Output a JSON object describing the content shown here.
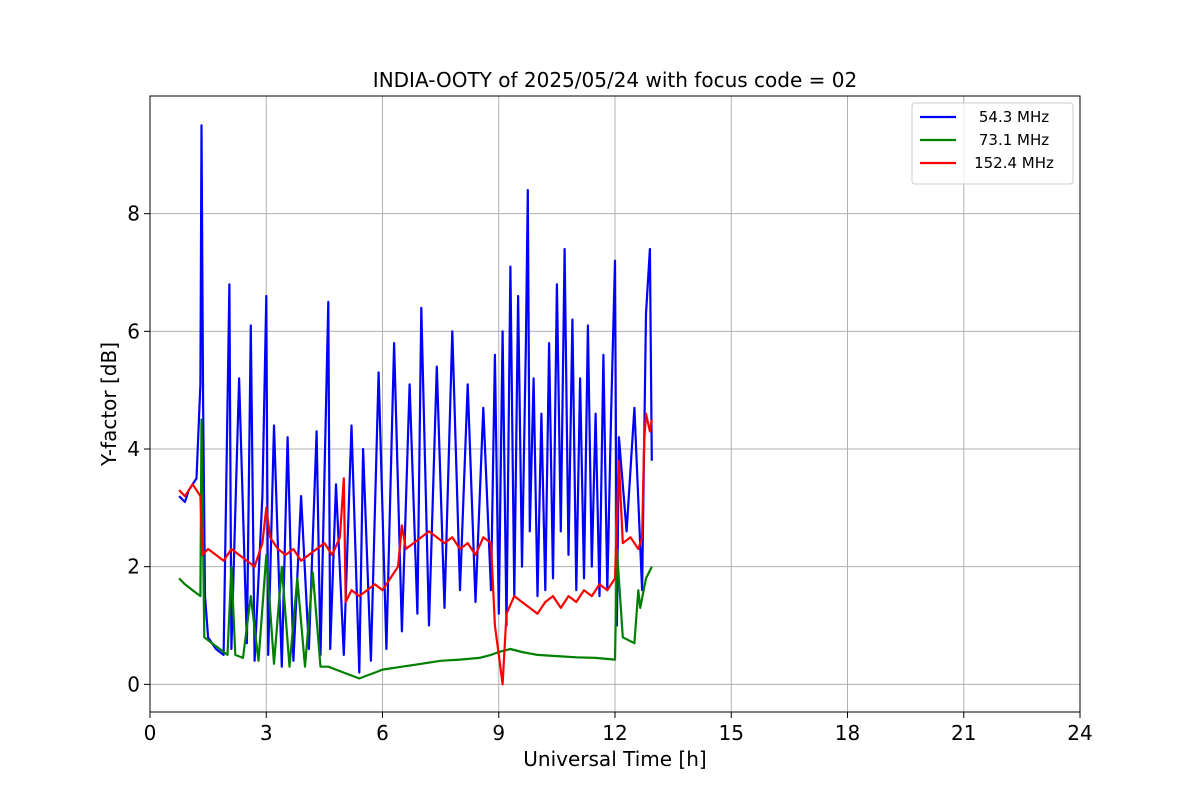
{
  "chart_data": {
    "type": "line",
    "title": "INDIA-OOTY of 2025/05/24 with focus code = 02",
    "xlabel": "Universal Time [h]",
    "ylabel": "Y-factor [dB]",
    "xlim": [
      0,
      24
    ],
    "ylim": [
      -0.47,
      10.0
    ],
    "xticks": [
      0,
      3,
      6,
      9,
      12,
      15,
      18,
      21,
      24
    ],
    "yticks": [
      0,
      2,
      4,
      6,
      8
    ],
    "xtick_labels": [
      "0",
      "3",
      "6",
      "9",
      "12",
      "15",
      "18",
      "21",
      "24"
    ],
    "ytick_labels": [
      "0",
      "2",
      "4",
      "6",
      "8"
    ],
    "grid": true,
    "legend_position": "top-right",
    "series": [
      {
        "name": "54.3 MHz",
        "color": "#0000ff",
        "x": [
          0.75,
          0.9,
          1.0,
          1.1,
          1.2,
          1.3,
          1.33,
          1.37,
          1.42,
          1.5,
          1.7,
          1.9,
          2.05,
          2.1,
          2.3,
          2.5,
          2.6,
          2.7,
          2.9,
          3.0,
          3.05,
          3.2,
          3.4,
          3.55,
          3.7,
          3.9,
          4.1,
          4.3,
          4.4,
          4.6,
          4.65,
          4.8,
          5.0,
          5.2,
          5.4,
          5.5,
          5.7,
          5.9,
          6.1,
          6.3,
          6.5,
          6.7,
          6.9,
          7.0,
          7.2,
          7.4,
          7.6,
          7.8,
          8.0,
          8.2,
          8.4,
          8.6,
          8.8,
          8.9,
          9.0,
          9.1,
          9.2,
          9.3,
          9.4,
          9.5,
          9.6,
          9.7,
          9.75,
          9.8,
          9.9,
          10.0,
          10.1,
          10.2,
          10.3,
          10.4,
          10.5,
          10.6,
          10.7,
          10.8,
          10.9,
          11.0,
          11.1,
          11.2,
          11.3,
          11.4,
          11.5,
          11.6,
          11.7,
          11.8,
          11.9,
          12.0,
          12.05,
          12.1,
          12.3,
          12.5,
          12.7,
          12.8,
          12.9,
          12.95
        ],
        "y": [
          3.2,
          3.1,
          3.3,
          3.4,
          3.5,
          5.1,
          9.5,
          4.8,
          1.5,
          0.8,
          0.6,
          0.5,
          6.8,
          0.6,
          5.2,
          0.7,
          6.1,
          0.4,
          3.2,
          6.6,
          0.5,
          4.4,
          0.3,
          4.2,
          0.4,
          3.2,
          0.6,
          4.3,
          0.5,
          6.5,
          0.6,
          3.4,
          0.5,
          4.4,
          0.2,
          4.0,
          0.4,
          5.3,
          0.6,
          5.8,
          0.9,
          5.1,
          1.2,
          6.4,
          1.0,
          5.4,
          1.3,
          6.0,
          1.6,
          5.1,
          1.4,
          4.7,
          1.6,
          5.6,
          1.2,
          6.0,
          1.0,
          7.1,
          1.5,
          6.6,
          2.0,
          5.8,
          8.4,
          2.6,
          5.2,
          1.5,
          4.6,
          1.6,
          5.8,
          1.8,
          6.8,
          2.6,
          7.4,
          2.2,
          6.2,
          1.6,
          5.2,
          1.8,
          6.1,
          2.0,
          4.6,
          1.5,
          5.6,
          1.6,
          4.6,
          7.2,
          1.0,
          4.2,
          2.6,
          4.7,
          1.6,
          6.3,
          7.4,
          3.8
        ]
      },
      {
        "name": "73.1 MHz",
        "color": "#008000",
        "x": [
          0.75,
          0.9,
          1.1,
          1.3,
          1.33,
          1.4,
          1.6,
          1.8,
          2.0,
          2.1,
          2.2,
          2.4,
          2.6,
          2.8,
          3.0,
          3.2,
          3.4,
          3.6,
          3.8,
          4.0,
          4.2,
          4.4,
          4.6,
          4.8,
          5.0,
          5.2,
          5.4,
          5.6,
          5.8,
          6.0,
          6.5,
          7.0,
          7.5,
          8.0,
          8.5,
          8.8,
          9.0,
          9.3,
          9.6,
          10.0,
          10.5,
          11.0,
          11.5,
          12.0,
          12.05,
          12.2,
          12.5,
          12.6,
          12.65,
          12.8,
          12.95
        ],
        "y": [
          1.8,
          1.7,
          1.6,
          1.5,
          4.5,
          0.8,
          0.7,
          0.6,
          0.5,
          2.0,
          0.5,
          0.45,
          1.5,
          0.4,
          2.2,
          0.35,
          2.0,
          0.3,
          1.8,
          0.3,
          1.9,
          0.3,
          0.3,
          0.25,
          0.2,
          0.15,
          0.1,
          0.15,
          0.2,
          0.25,
          0.3,
          0.35,
          0.4,
          0.42,
          0.45,
          0.5,
          0.55,
          0.6,
          0.55,
          0.5,
          0.48,
          0.46,
          0.45,
          0.42,
          2.3,
          0.8,
          0.7,
          1.6,
          1.3,
          1.8,
          2.0
        ]
      },
      {
        "name": "152.4 MHz",
        "color": "#ff0000",
        "x": [
          0.75,
          0.9,
          1.0,
          1.1,
          1.2,
          1.3,
          1.35,
          1.5,
          1.7,
          1.9,
          2.1,
          2.3,
          2.5,
          2.7,
          2.9,
          3.0,
          3.1,
          3.3,
          3.5,
          3.7,
          3.9,
          4.1,
          4.3,
          4.5,
          4.7,
          4.9,
          5.0,
          5.05,
          5.2,
          5.4,
          5.6,
          5.8,
          6.0,
          6.2,
          6.4,
          6.5,
          6.6,
          6.8,
          7.0,
          7.2,
          7.4,
          7.6,
          7.8,
          8.0,
          8.2,
          8.4,
          8.6,
          8.8,
          8.9,
          9.0,
          9.1,
          9.2,
          9.4,
          9.6,
          9.8,
          10.0,
          10.2,
          10.4,
          10.6,
          10.8,
          11.0,
          11.2,
          11.4,
          11.6,
          11.8,
          12.0,
          12.1,
          12.2,
          12.4,
          12.6,
          12.7,
          12.75,
          12.8,
          12.9,
          12.95
        ],
        "y": [
          3.3,
          3.2,
          3.3,
          3.4,
          3.3,
          3.2,
          2.2,
          2.3,
          2.2,
          2.1,
          2.3,
          2.2,
          2.1,
          2.0,
          2.4,
          3.0,
          2.5,
          2.3,
          2.2,
          2.3,
          2.1,
          2.2,
          2.3,
          2.4,
          2.2,
          2.5,
          3.5,
          1.4,
          1.6,
          1.5,
          1.6,
          1.7,
          1.6,
          1.8,
          2.0,
          2.7,
          2.3,
          2.4,
          2.5,
          2.6,
          2.5,
          2.4,
          2.5,
          2.3,
          2.4,
          2.2,
          2.5,
          2.4,
          1.0,
          0.5,
          0.0,
          1.2,
          1.5,
          1.4,
          1.3,
          1.2,
          1.4,
          1.5,
          1.3,
          1.5,
          1.4,
          1.6,
          1.5,
          1.7,
          1.6,
          1.8,
          3.8,
          2.4,
          2.5,
          2.3,
          2.5,
          4.1,
          4.6,
          4.3,
          4.5
        ]
      }
    ]
  }
}
